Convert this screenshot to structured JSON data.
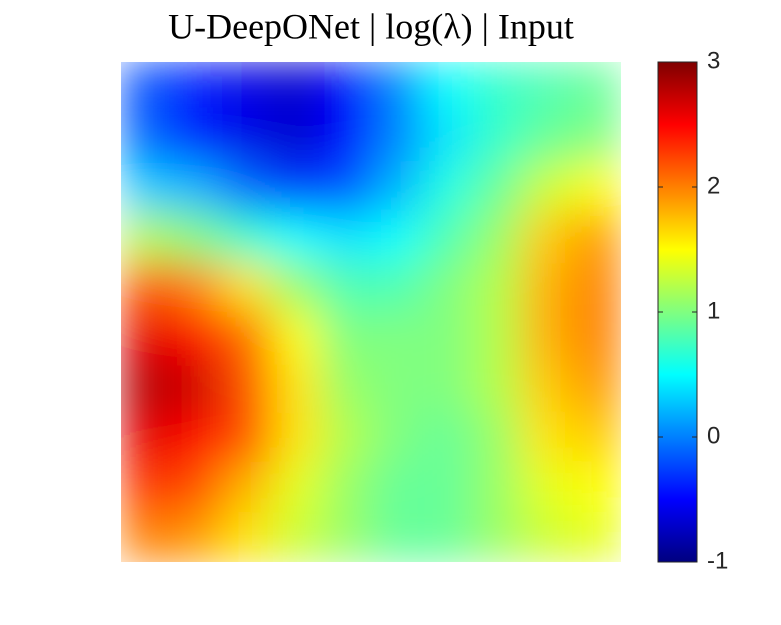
{
  "chart_data": {
    "type": "heatmap",
    "title": "U-DeepONet |  log(λ) | Input",
    "colormap": "jet",
    "z": [
      [
        -0.2,
        -0.4,
        -0.6,
        -0.7,
        -0.5,
        0.0,
        0.5,
        0.7,
        0.8,
        0.9
      ],
      [
        -0.1,
        -0.4,
        -0.6,
        -0.7,
        -0.5,
        0.0,
        0.4,
        0.7,
        0.9,
        1.0
      ],
      [
        0.3,
        0.2,
        -0.1,
        -0.3,
        -0.2,
        0.2,
        0.6,
        0.9,
        1.3,
        1.5
      ],
      [
        1.2,
        1.0,
        0.7,
        0.5,
        0.4,
        0.5,
        0.8,
        1.1,
        1.7,
        1.9
      ],
      [
        2.2,
        2.0,
        1.6,
        1.1,
        0.8,
        0.8,
        1.0,
        1.2,
        1.8,
        2.0
      ],
      [
        2.6,
        2.5,
        2.1,
        1.5,
        1.0,
        1.0,
        1.0,
        1.2,
        1.8,
        2.0
      ],
      [
        2.8,
        2.7,
        2.2,
        1.6,
        1.1,
        1.0,
        1.0,
        1.2,
        1.7,
        1.9
      ],
      [
        2.6,
        2.5,
        2.2,
        1.6,
        1.2,
        1.0,
        0.9,
        1.1,
        1.6,
        1.7
      ],
      [
        2.3,
        2.2,
        1.8,
        1.4,
        1.1,
        0.9,
        0.9,
        1.1,
        1.4,
        1.5
      ],
      [
        2.0,
        1.9,
        1.6,
        1.3,
        1.1,
        0.9,
        0.9,
        1.1,
        1.3,
        1.4
      ]
    ],
    "clim": [
      -1,
      3
    ],
    "cticks": [
      -1,
      0,
      1,
      2,
      3
    ]
  }
}
